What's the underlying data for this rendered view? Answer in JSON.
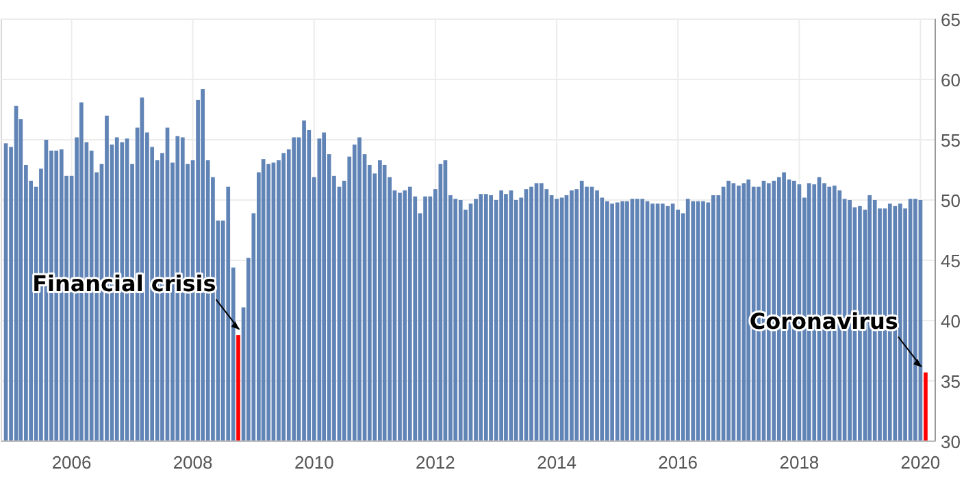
{
  "chart_data": {
    "type": "bar",
    "x": [
      "2004-12",
      "2005-01",
      "2005-02",
      "2005-03",
      "2005-04",
      "2005-05",
      "2005-06",
      "2005-07",
      "2005-08",
      "2005-09",
      "2005-10",
      "2005-11",
      "2005-12",
      "2006-01",
      "2006-02",
      "2006-03",
      "2006-04",
      "2006-05",
      "2006-06",
      "2006-07",
      "2006-08",
      "2006-09",
      "2006-10",
      "2006-11",
      "2006-12",
      "2007-01",
      "2007-02",
      "2007-03",
      "2007-04",
      "2007-05",
      "2007-06",
      "2007-07",
      "2007-08",
      "2007-09",
      "2007-10",
      "2007-11",
      "2007-12",
      "2008-01",
      "2008-02",
      "2008-03",
      "2008-04",
      "2008-05",
      "2008-06",
      "2008-07",
      "2008-08",
      "2008-09",
      "2008-10",
      "2008-11",
      "2008-12",
      "2009-01",
      "2009-02",
      "2009-03",
      "2009-04",
      "2009-05",
      "2009-06",
      "2009-07",
      "2009-08",
      "2009-09",
      "2009-10",
      "2009-11",
      "2009-12",
      "2010-01",
      "2010-02",
      "2010-03",
      "2010-04",
      "2010-05",
      "2010-06",
      "2010-07",
      "2010-08",
      "2010-09",
      "2010-10",
      "2010-11",
      "2010-12",
      "2011-01",
      "2011-02",
      "2011-03",
      "2011-04",
      "2011-05",
      "2011-06",
      "2011-07",
      "2011-08",
      "2011-09",
      "2011-10",
      "2011-11",
      "2011-12",
      "2012-01",
      "2012-02",
      "2012-03",
      "2012-04",
      "2012-05",
      "2012-06",
      "2012-07",
      "2012-08",
      "2012-09",
      "2012-10",
      "2012-11",
      "2012-12",
      "2013-01",
      "2013-02",
      "2013-03",
      "2013-04",
      "2013-05",
      "2013-06",
      "2013-07",
      "2013-08",
      "2013-09",
      "2013-10",
      "2013-11",
      "2013-12",
      "2014-01",
      "2014-02",
      "2014-03",
      "2014-04",
      "2014-05",
      "2014-06",
      "2014-07",
      "2014-08",
      "2014-09",
      "2014-10",
      "2014-11",
      "2014-12",
      "2015-01",
      "2015-02",
      "2015-03",
      "2015-04",
      "2015-05",
      "2015-06",
      "2015-07",
      "2015-08",
      "2015-09",
      "2015-10",
      "2015-11",
      "2015-12",
      "2016-01",
      "2016-02",
      "2016-03",
      "2016-04",
      "2016-05",
      "2016-06",
      "2016-07",
      "2016-08",
      "2016-09",
      "2016-10",
      "2016-11",
      "2016-12",
      "2017-01",
      "2017-02",
      "2017-03",
      "2017-04",
      "2017-05",
      "2017-06",
      "2017-07",
      "2017-08",
      "2017-09",
      "2017-10",
      "2017-11",
      "2017-12",
      "2018-01",
      "2018-02",
      "2018-03",
      "2018-04",
      "2018-05",
      "2018-06",
      "2018-07",
      "2018-08",
      "2018-09",
      "2018-10",
      "2018-11",
      "2018-12",
      "2019-01",
      "2019-02",
      "2019-03",
      "2019-04",
      "2019-05",
      "2019-06",
      "2019-07",
      "2019-08",
      "2019-09",
      "2019-10",
      "2019-11",
      "2019-12",
      "2020-01",
      "2020-02"
    ],
    "values": [
      54.7,
      54.4,
      57.8,
      56.7,
      52.9,
      51.6,
      51.1,
      52.6,
      55.0,
      54.1,
      54.1,
      54.2,
      52.0,
      52.0,
      55.2,
      58.1,
      54.8,
      54.1,
      52.3,
      53.0,
      57.0,
      54.6,
      55.2,
      54.8,
      55.1,
      53.0,
      56.0,
      58.5,
      55.6,
      54.4,
      53.3,
      53.9,
      56.0,
      53.1,
      55.3,
      55.2,
      53.0,
      53.3,
      58.3,
      59.2,
      53.3,
      51.9,
      48.3,
      48.3,
      51.1,
      44.4,
      38.8,
      41.1,
      45.2,
      48.9,
      52.3,
      53.4,
      53.0,
      53.1,
      53.3,
      53.9,
      54.2,
      55.2,
      55.2,
      56.6,
      55.8,
      51.9,
      55.1,
      55.6,
      53.8,
      52.0,
      51.1,
      51.6,
      53.6,
      54.6,
      55.2,
      53.8,
      52.9,
      52.2,
      53.3,
      52.9,
      51.9,
      50.8,
      50.6,
      50.8,
      51.1,
      50.3,
      48.9,
      50.3,
      50.3,
      50.9,
      53.0,
      53.3,
      50.4,
      50.1,
      50.0,
      49.2,
      49.7,
      50.1,
      50.5,
      50.5,
      50.4,
      50.0,
      50.8,
      50.5,
      50.8,
      50.0,
      50.2,
      50.9,
      51.1,
      51.4,
      51.4,
      50.9,
      50.4,
      50.1,
      50.2,
      50.4,
      50.8,
      50.9,
      51.6,
      51.1,
      51.1,
      50.8,
      50.2,
      49.9,
      49.7,
      49.8,
      49.9,
      49.9,
      50.1,
      50.1,
      50.1,
      49.9,
      49.7,
      49.7,
      49.7,
      49.5,
      49.7,
      49.2,
      48.9,
      50.1,
      49.9,
      49.9,
      49.9,
      49.8,
      50.4,
      50.4,
      51.1,
      51.6,
      51.4,
      51.2,
      51.4,
      51.7,
      51.1,
      51.1,
      51.6,
      51.4,
      51.6,
      51.9,
      52.3,
      51.7,
      51.6,
      51.3,
      50.2,
      51.4,
      51.3,
      51.9,
      51.4,
      51.1,
      51.2,
      50.8,
      50.1,
      50.0,
      49.4,
      49.5,
      49.2,
      50.4,
      50.0,
      49.3,
      49.3,
      49.7,
      49.5,
      49.7,
      49.3,
      50.1,
      50.1,
      50.0,
      35.7
    ],
    "colors": [
      "#6184b6",
      "#6184b6",
      "#6184b6",
      "#6184b6",
      "#6184b6",
      "#6184b6",
      "#6184b6",
      "#6184b6",
      "#6184b6",
      "#6184b6",
      "#6184b6",
      "#6184b6",
      "#6184b6",
      "#6184b6",
      "#6184b6",
      "#6184b6",
      "#6184b6",
      "#6184b6",
      "#6184b6",
      "#6184b6",
      "#6184b6",
      "#6184b6",
      "#6184b6",
      "#6184b6",
      "#6184b6",
      "#6184b6",
      "#6184b6",
      "#6184b6",
      "#6184b6",
      "#6184b6",
      "#6184b6",
      "#6184b6",
      "#6184b6",
      "#6184b6",
      "#6184b6",
      "#6184b6",
      "#6184b6",
      "#6184b6",
      "#6184b6",
      "#6184b6",
      "#6184b6",
      "#6184b6",
      "#6184b6",
      "#6184b6",
      "#6184b6",
      "#6184b6",
      "#ff0000",
      "#6184b6",
      "#6184b6",
      "#6184b6",
      "#6184b6",
      "#6184b6",
      "#6184b6",
      "#6184b6",
      "#6184b6",
      "#6184b6",
      "#6184b6",
      "#6184b6",
      "#6184b6",
      "#6184b6",
      "#6184b6",
      "#6184b6",
      "#6184b6",
      "#6184b6",
      "#6184b6",
      "#6184b6",
      "#6184b6",
      "#6184b6",
      "#6184b6",
      "#6184b6",
      "#6184b6",
      "#6184b6",
      "#6184b6",
      "#6184b6",
      "#6184b6",
      "#6184b6",
      "#6184b6",
      "#6184b6",
      "#6184b6",
      "#6184b6",
      "#6184b6",
      "#6184b6",
      "#6184b6",
      "#6184b6",
      "#6184b6",
      "#6184b6",
      "#6184b6",
      "#6184b6",
      "#6184b6",
      "#6184b6",
      "#6184b6",
      "#6184b6",
      "#6184b6",
      "#6184b6",
      "#6184b6",
      "#6184b6",
      "#6184b6",
      "#6184b6",
      "#6184b6",
      "#6184b6",
      "#6184b6",
      "#6184b6",
      "#6184b6",
      "#6184b6",
      "#6184b6",
      "#6184b6",
      "#6184b6",
      "#6184b6",
      "#6184b6",
      "#6184b6",
      "#6184b6",
      "#6184b6",
      "#6184b6",
      "#6184b6",
      "#6184b6",
      "#6184b6",
      "#6184b6",
      "#6184b6",
      "#6184b6",
      "#6184b6",
      "#6184b6",
      "#6184b6",
      "#6184b6",
      "#6184b6",
      "#6184b6",
      "#6184b6",
      "#6184b6",
      "#6184b6",
      "#6184b6",
      "#6184b6",
      "#6184b6",
      "#6184b6",
      "#6184b6",
      "#6184b6",
      "#6184b6",
      "#6184b6",
      "#6184b6",
      "#6184b6",
      "#6184b6",
      "#6184b6",
      "#6184b6",
      "#6184b6",
      "#6184b6",
      "#6184b6",
      "#6184b6",
      "#6184b6",
      "#6184b6",
      "#6184b6",
      "#6184b6",
      "#6184b6",
      "#6184b6",
      "#6184b6",
      "#6184b6",
      "#6184b6",
      "#6184b6",
      "#6184b6",
      "#6184b6",
      "#6184b6",
      "#6184b6",
      "#6184b6",
      "#6184b6",
      "#6184b6",
      "#6184b6",
      "#6184b6",
      "#6184b6",
      "#6184b6",
      "#6184b6",
      "#6184b6",
      "#6184b6",
      "#6184b6",
      "#6184b6",
      "#6184b6",
      "#6184b6",
      "#6184b6",
      "#6184b6",
      "#6184b6",
      "#6184b6",
      "#6184b6",
      "#6184b6",
      "#6184b6",
      "#6184b6",
      "#6184b6",
      "#ff0000"
    ],
    "xlim": [
      "2004-11-04",
      "2020-03-30"
    ],
    "xticks": [
      "2006",
      "2008",
      "2010",
      "2012",
      "2014",
      "2016",
      "2018",
      "2020"
    ],
    "ylim": [
      30,
      65
    ],
    "yticks": [
      30,
      35,
      40,
      45,
      50,
      55,
      60,
      65
    ],
    "grid": true,
    "annotations": [
      {
        "text": "Financial crisis",
        "x": "2008-11",
        "y": 38.8
      },
      {
        "text": "Coronavirus",
        "x": "2020-02",
        "y": 35.7
      }
    ]
  }
}
